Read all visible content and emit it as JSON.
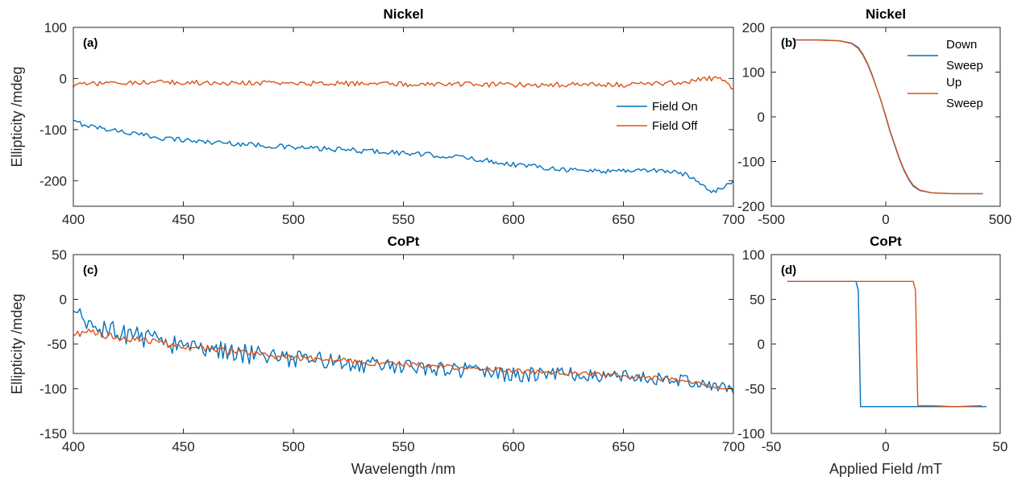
{
  "colors": {
    "series1": "#0072BD",
    "series2": "#D95319"
  },
  "chart_data": [
    {
      "id": "a",
      "type": "line",
      "panel_label": "(a)",
      "title": "Nickel",
      "xlabel": "",
      "ylabel": "Ellipticity /mdeg",
      "xlim": [
        400,
        700
      ],
      "ylim": [
        -250,
        100
      ],
      "xticks": [
        400,
        450,
        500,
        550,
        600,
        650,
        700
      ],
      "yticks": [
        100,
        0,
        -100,
        -200
      ],
      "legend_position": "right",
      "series": [
        {
          "name": "Field On",
          "color": "#0072BD",
          "noise": 5,
          "x": [
            400,
            410,
            420,
            430,
            440,
            450,
            460,
            470,
            480,
            490,
            500,
            510,
            520,
            530,
            540,
            550,
            560,
            570,
            580,
            590,
            600,
            610,
            620,
            630,
            640,
            650,
            660,
            670,
            680,
            685,
            690,
            695,
            700
          ],
          "y": [
            -85,
            -95,
            -102,
            -110,
            -116,
            -120,
            -124,
            -126,
            -129,
            -132,
            -135,
            -137,
            -139,
            -141,
            -143,
            -146,
            -149,
            -152,
            -156,
            -162,
            -168,
            -172,
            -176,
            -180,
            -181,
            -180,
            -179,
            -181,
            -190,
            -205,
            -220,
            -215,
            -200
          ]
        },
        {
          "name": "Field Off",
          "color": "#D95319",
          "noise": 5,
          "x": [
            400,
            405,
            410,
            420,
            430,
            450,
            500,
            550,
            600,
            650,
            670,
            680,
            690,
            695,
            700
          ],
          "y": [
            -15,
            -12,
            -10,
            -8,
            -8,
            -8,
            -9,
            -11,
            -12,
            -12,
            -10,
            -5,
            0,
            -3,
            -20
          ]
        }
      ]
    },
    {
      "id": "b",
      "type": "line",
      "panel_label": "(b)",
      "title": "Nickel",
      "xlabel": "",
      "ylabel": "",
      "xlim": [
        -500,
        500
      ],
      "ylim": [
        -200,
        200
      ],
      "xticks": [
        -500,
        0,
        500
      ],
      "yticks": [
        200,
        100,
        0,
        -100,
        -200
      ],
      "legend_position": "top-right",
      "series": [
        {
          "name": "Down Sweep",
          "legend_lines": [
            "Down",
            "Sweep"
          ],
          "color": "#0072BD",
          "noise": 0,
          "x": [
            -400,
            -300,
            -200,
            -150,
            -120,
            -100,
            -80,
            -60,
            -40,
            -20,
            0,
            20,
            40,
            60,
            80,
            100,
            120,
            150,
            200,
            300,
            400,
            425
          ],
          "y": [
            172,
            172,
            170,
            165,
            155,
            140,
            120,
            95,
            65,
            35,
            0,
            -35,
            -65,
            -95,
            -120,
            -140,
            -155,
            -165,
            -170,
            -172,
            -172,
            -172
          ]
        },
        {
          "name": "Up Sweep",
          "legend_lines": [
            "Up",
            "Sweep"
          ],
          "color": "#D95319",
          "noise": 0,
          "x": [
            -400,
            -300,
            -200,
            -150,
            -120,
            -100,
            -80,
            -60,
            -40,
            -20,
            0,
            20,
            40,
            60,
            80,
            100,
            120,
            150,
            200,
            300,
            400,
            425
          ],
          "y": [
            172,
            172,
            170,
            164,
            153,
            138,
            118,
            93,
            65,
            35,
            2,
            -33,
            -63,
            -93,
            -118,
            -138,
            -153,
            -164,
            -170,
            -172,
            -172,
            -172
          ]
        }
      ]
    },
    {
      "id": "c",
      "type": "line",
      "panel_label": "(c)",
      "title": "CoPt",
      "xlabel": "Wavelength /nm",
      "ylabel": "Ellipticity /mdeg",
      "xlim": [
        400,
        700
      ],
      "ylim": [
        -150,
        50
      ],
      "xticks": [
        400,
        450,
        500,
        550,
        600,
        650,
        700
      ],
      "yticks": [
        50,
        0,
        -50,
        -100,
        -150
      ],
      "series": [
        {
          "name": "",
          "color": "#0072BD",
          "noise": 9,
          "x": [
            400,
            405,
            410,
            420,
            430,
            440,
            450,
            460,
            470,
            480,
            490,
            500,
            520,
            540,
            560,
            580,
            600,
            620,
            640,
            660,
            680,
            690,
            700
          ],
          "y": [
            -20,
            -25,
            -32,
            -38,
            -42,
            -46,
            -52,
            -55,
            -58,
            -62,
            -65,
            -66,
            -70,
            -74,
            -76,
            -80,
            -85,
            -82,
            -85,
            -88,
            -92,
            -98,
            -100
          ]
        },
        {
          "name": "",
          "color": "#D95319",
          "noise": 3,
          "x": [
            400,
            405,
            410,
            420,
            430,
            440,
            450,
            460,
            470,
            480,
            490,
            500,
            520,
            540,
            560,
            580,
            600,
            620,
            640,
            660,
            680,
            690,
            700
          ],
          "y": [
            -42,
            -36,
            -38,
            -42,
            -46,
            -49,
            -52,
            -55,
            -58,
            -60,
            -63,
            -65,
            -68,
            -72,
            -74,
            -77,
            -80,
            -82,
            -84,
            -87,
            -92,
            -97,
            -100
          ]
        }
      ]
    },
    {
      "id": "d",
      "type": "line",
      "panel_label": "(d)",
      "title": "CoPt",
      "xlabel": "Applied Field /mT",
      "ylabel": "",
      "xlim": [
        -50,
        50
      ],
      "ylim": [
        -100,
        100
      ],
      "xticks": [
        -50,
        0,
        50
      ],
      "yticks": [
        100,
        50,
        0,
        -50,
        -100
      ],
      "series": [
        {
          "name": "",
          "color": "#0072BD",
          "noise": 0,
          "x": [
            -43,
            -30,
            -20,
            -15,
            -13,
            -12,
            -11,
            0,
            10,
            20,
            30,
            44
          ],
          "y": [
            70,
            70,
            70,
            70,
            70,
            60,
            -70,
            -70,
            -70,
            -70,
            -70,
            -70
          ]
        },
        {
          "name": "",
          "color": "#D95319",
          "noise": 0,
          "x": [
            -43,
            -30,
            -20,
            0,
            10,
            12,
            13,
            14,
            20,
            30,
            42
          ],
          "y": [
            70,
            70,
            70,
            70,
            70,
            70,
            60,
            -69,
            -69,
            -70,
            -69
          ]
        }
      ]
    }
  ]
}
